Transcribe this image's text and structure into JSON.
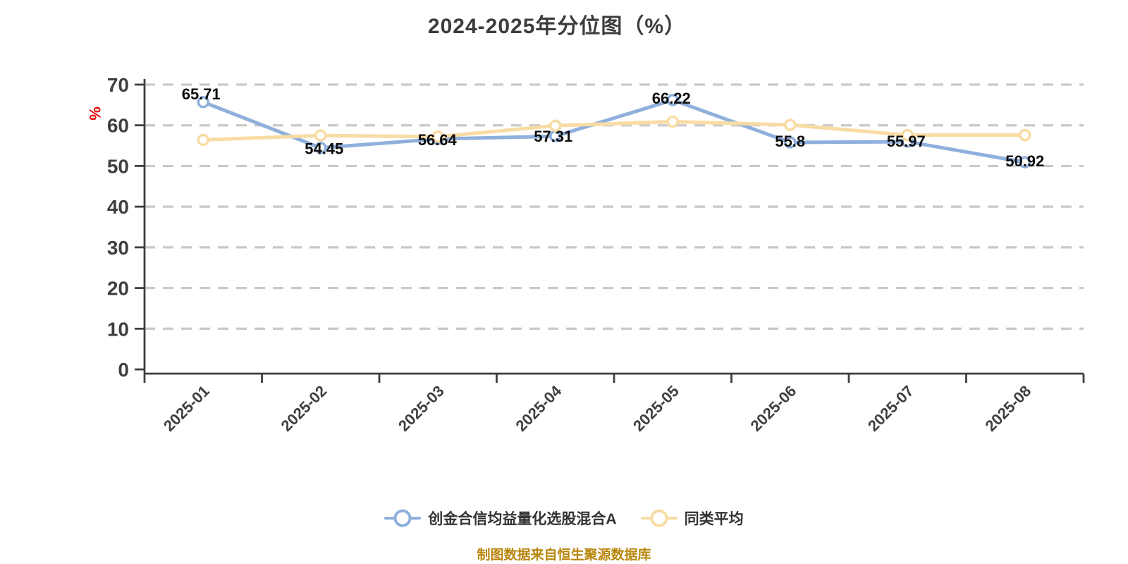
{
  "chart_data": {
    "type": "line",
    "title": "2024-2025年分位图（%）",
    "y_unit": "%",
    "categories": [
      "2025-01",
      "2025-02",
      "2025-03",
      "2025-04",
      "2025-05",
      "2025-06",
      "2025-07",
      "2025-08"
    ],
    "ylim": [
      0,
      70
    ],
    "yticks": [
      0,
      10,
      20,
      30,
      40,
      50,
      60,
      70
    ],
    "grid": "horizontal-dashed",
    "legend_position": "bottom",
    "series": [
      {
        "name": "创金合信均益量化选股混合A",
        "color": "#8fb0dc",
        "values": [
          65.71,
          54.45,
          56.64,
          57.31,
          66.22,
          55.8,
          55.97,
          50.92
        ],
        "labels": [
          "65.71",
          "54.45",
          "56.64",
          "57.31",
          "66.22",
          "55.8",
          "55.97",
          "50.92"
        ],
        "show_labels": true
      },
      {
        "name": "同类平均",
        "color": "#f8dca3",
        "values": [
          56.4,
          57.5,
          57.2,
          59.9,
          60.9,
          60.1,
          57.6,
          57.6
        ],
        "show_labels": false
      }
    ],
    "footer": "制图数据来自恒生聚源数据库"
  },
  "colors": {
    "background": "#ffffff",
    "title": "#3c3c3c",
    "axis": "#3f3f3f",
    "grid": "#c9c9c9",
    "tick_label": "#3f3f3f",
    "data_label": "#0d0d0d",
    "legend_text": "#333333",
    "footer": "#b8860b",
    "y_unit": "#e60000",
    "marker_fill": "#ffffff"
  }
}
